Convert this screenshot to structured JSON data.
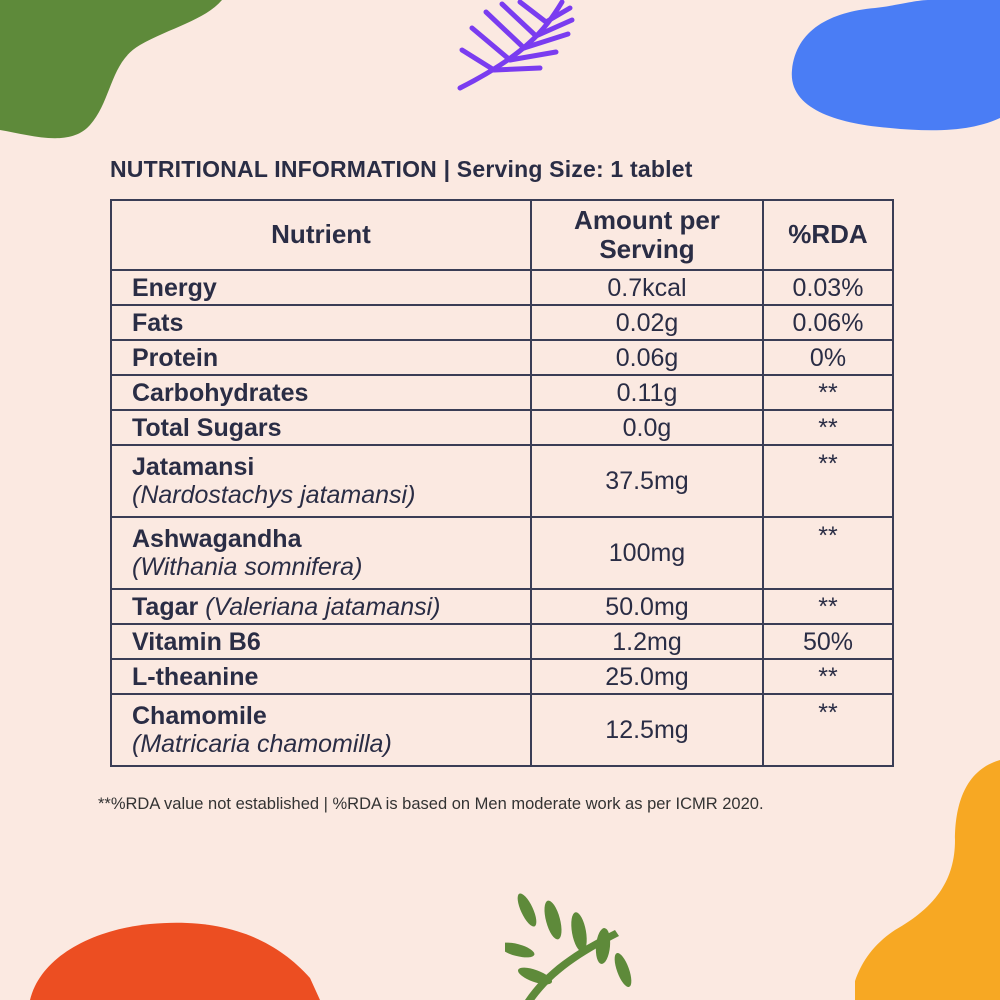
{
  "title": "NUTRITIONAL INFORMATION | Serving Size: 1 tablet",
  "table": {
    "headers": {
      "nutrient": "Nutrient",
      "amount": "Amount per Serving",
      "rda": "%RDA"
    },
    "rows": [
      {
        "name": "Energy",
        "scientific": "",
        "amount": "0.7kcal",
        "rda": "0.03%"
      },
      {
        "name": "Fats",
        "scientific": "",
        "amount": "0.02g",
        "rda": "0.06%"
      },
      {
        "name": "Protein",
        "scientific": "",
        "amount": "0.06g",
        "rda": "0%"
      },
      {
        "name": "Carbohydrates",
        "scientific": "",
        "amount": "0.11g",
        "rda": "**"
      },
      {
        "name": "Total Sugars",
        "scientific": "",
        "amount": "0.0g",
        "rda": "**"
      },
      {
        "name": "Jatamansi",
        "scientific": "(Nardostachys jatamansi)",
        "amount": "37.5mg",
        "rda": "**"
      },
      {
        "name": "Ashwagandha",
        "scientific": "(Withania somnifera)",
        "amount": "100mg",
        "rda": "**"
      },
      {
        "name": "Tagar",
        "scientific": "(Valeriana jatamansi)",
        "amount": "50.0mg",
        "rda": "**"
      },
      {
        "name": "Vitamin B6",
        "scientific": "",
        "amount": "1.2mg",
        "rda": "50%"
      },
      {
        "name": "L-theanine",
        "scientific": "",
        "amount": "25.0mg",
        "rda": "**"
      },
      {
        "name": "Chamomile",
        "scientific": "(Matricaria chamomilla)",
        "amount": "12.5mg",
        "rda": "**"
      }
    ]
  },
  "footnote": "**%RDA value not established | %RDA is based on Men moderate work as per ICMR 2020.",
  "colors": {
    "background": "#fbe9e1",
    "text": "#2a2d45",
    "green_blob": "#5e8a3a",
    "blue_blob": "#4a7df5",
    "orange_blob": "#f7a823",
    "red_blob": "#ec4e22",
    "purple_leaf": "#7a3cf0",
    "green_leaf": "#5e8a3a"
  }
}
